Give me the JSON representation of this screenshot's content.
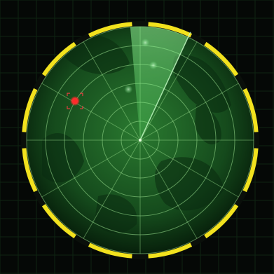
{
  "radar": {
    "colors": {
      "background": "#050806",
      "scope_dark": "#0c2a12",
      "scope_mid": "#1f5a27",
      "grid": "#9be08f",
      "sweep": "#5fe06a",
      "bezel_yellow": "#f2e21e",
      "bezel_dark": "#0a0f0a",
      "contact_friendly": "#7cf08a",
      "contact_hostile": "#ff2a2a",
      "target_bracket": "#e04040"
    },
    "ring_count": 6,
    "spoke_count": 12,
    "sweep_angle_deg": 25,
    "contacts": [
      {
        "name": "friendly-contact-1",
        "type": "friendly",
        "bearing_deg": 3,
        "range_fraction": 0.86
      },
      {
        "name": "friendly-contact-2",
        "type": "friendly",
        "bearing_deg": 10,
        "range_fraction": 0.67
      },
      {
        "name": "friendly-contact-3",
        "type": "friendly",
        "bearing_deg": -13,
        "range_fraction": 0.46
      },
      {
        "name": "hostile-contact",
        "type": "hostile",
        "bearing_deg": -59,
        "range_fraction": 0.67,
        "targeted": true
      }
    ]
  }
}
